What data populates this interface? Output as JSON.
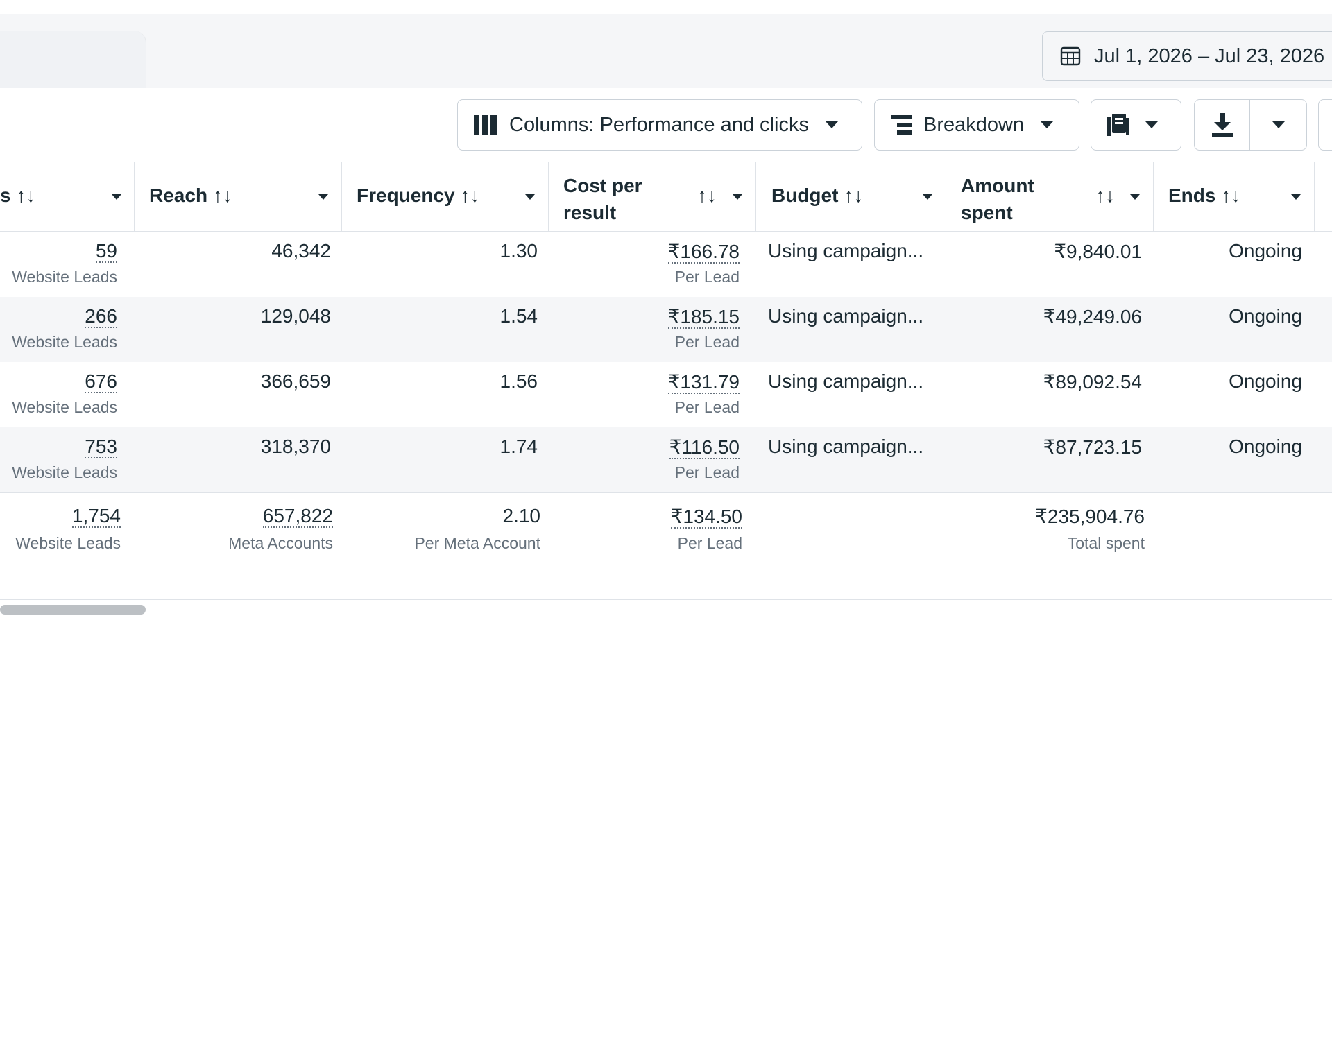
{
  "date_range": "Jul 1, 2026 – Jul 23, 2026",
  "toolbar": {
    "columns_label": "Columns: Performance and clicks",
    "breakdown_label": "Breakdown"
  },
  "columns": {
    "results": "s ↑↓",
    "reach": "Reach",
    "frequency": "Frequency",
    "cost_per_result_line1": "Cost per",
    "cost_per_result_line2": "result",
    "budget": "Budget",
    "amount_spent_line1": "Amount",
    "amount_spent_line2": "spent",
    "ends": "Ends",
    "sort_glyph": "↑↓"
  },
  "rows": [
    {
      "results": "59",
      "results_sub": "Website Leads",
      "reach": "46,342",
      "frequency": "1.30",
      "cpr": "₹166.78",
      "cpr_sub": "Per Lead",
      "budget": "Using campaign...",
      "spent": "₹9,840.01",
      "ends": "Ongoing"
    },
    {
      "results": "266",
      "results_sub": "Website Leads",
      "reach": "129,048",
      "frequency": "1.54",
      "cpr": "₹185.15",
      "cpr_sub": "Per Lead",
      "budget": "Using campaign...",
      "spent": "₹49,249.06",
      "ends": "Ongoing"
    },
    {
      "results": "676",
      "results_sub": "Website Leads",
      "reach": "366,659",
      "frequency": "1.56",
      "cpr": "₹131.79",
      "cpr_sub": "Per Lead",
      "budget": "Using campaign...",
      "spent": "₹89,092.54",
      "ends": "Ongoing"
    },
    {
      "results": "753",
      "results_sub": "Website Leads",
      "reach": "318,370",
      "frequency": "1.74",
      "cpr": "₹116.50",
      "cpr_sub": "Per Lead",
      "budget": "Using campaign...",
      "spent": "₹87,723.15",
      "ends": "Ongoing"
    }
  ],
  "totals": {
    "results": "1,754",
    "results_sub": "Website Leads",
    "reach": "657,822",
    "reach_sub": "Meta Accounts",
    "frequency": "2.10",
    "frequency_sub": "Per Meta Account",
    "cpr": "₹134.50",
    "cpr_sub": "Per Lead",
    "spent": "₹235,904.76",
    "spent_sub": "Total spent"
  },
  "colors": {
    "row_alt": "#f5f6f8",
    "border": "#dfe3e8",
    "text": "#1c2b33",
    "muted": "#65707b"
  }
}
